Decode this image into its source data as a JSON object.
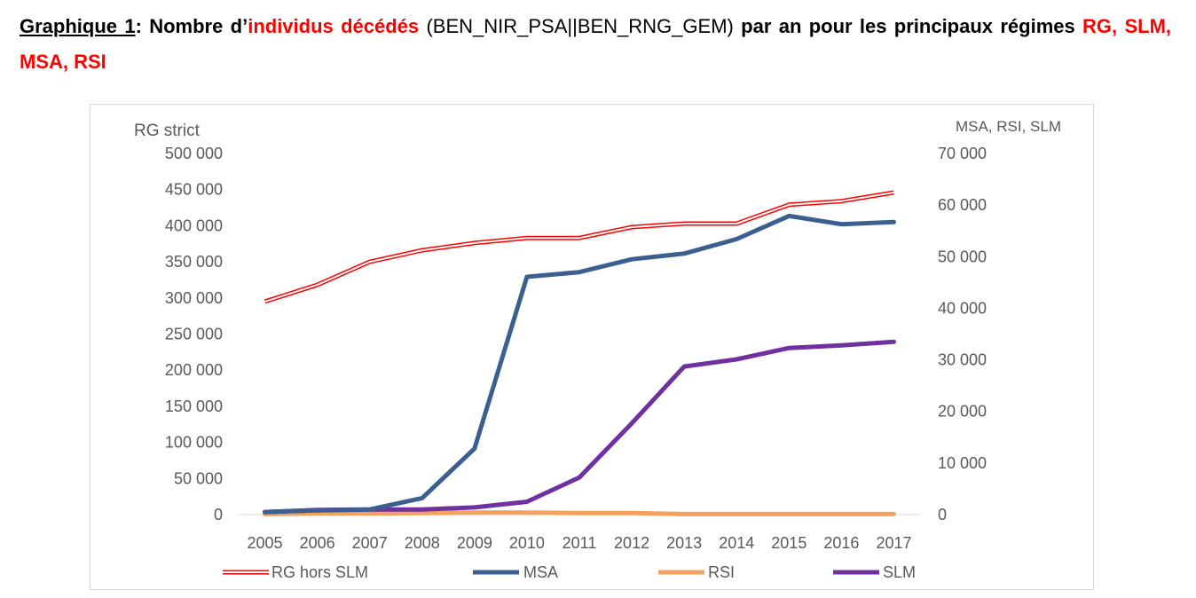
{
  "caption": {
    "label": "Graphique 1",
    "colon": ":",
    "part1": " Nombre d’",
    "highlight1": "individus décédés",
    "part2": " (BEN_NIR_PSA||BEN_RNG_GEM)",
    "part3": " par an pour les principaux régimes ",
    "highlight2": "RG, SLM, MSA, RSI"
  },
  "colors": {
    "rg": "#ff0000",
    "msa": "#3b5f8f",
    "rsi": "#f4a15d",
    "slm": "#7030a0",
    "tick": "#595959",
    "axis": "#d9d9d9",
    "caption_red": "#ff0000"
  },
  "chart_data": {
    "type": "line",
    "x": [
      "2005",
      "2006",
      "2007",
      "2008",
      "2009",
      "2010",
      "2011",
      "2012",
      "2013",
      "2014",
      "2015",
      "2016",
      "2017"
    ],
    "left_axis": {
      "title": "RG strict",
      "ylim": [
        0,
        500000
      ],
      "ticks": [
        "0",
        "50 000",
        "100 000",
        "150 000",
        "200 000",
        "250 000",
        "300 000",
        "350 000",
        "400 000",
        "450 000",
        "500 000"
      ]
    },
    "right_axis": {
      "title": "MSA, RSI, SLM",
      "ylim": [
        0,
        70000
      ],
      "ticks": [
        "0",
        "10 000",
        "20 000",
        "30 000",
        "40 000",
        "50 000",
        "60 000",
        "70 000"
      ]
    },
    "grid": false,
    "legend_position": "bottom",
    "series": [
      {
        "name": "RG hors SLM",
        "axis": "left",
        "style": "double",
        "values": [
          295000,
          318000,
          350000,
          366000,
          376000,
          383000,
          383000,
          398000,
          403000,
          403000,
          429000,
          434000,
          446000
        ]
      },
      {
        "name": "MSA",
        "axis": "right",
        "values": [
          500,
          800,
          1000,
          3200,
          12800,
          46100,
          47000,
          49500,
          50600,
          53400,
          57900,
          56300,
          56700
        ]
      },
      {
        "name": "RSI",
        "axis": "right",
        "values": [
          100,
          200,
          200,
          300,
          400,
          400,
          300,
          300,
          100,
          100,
          100,
          100,
          100
        ]
      },
      {
        "name": "SLM",
        "axis": "right",
        "values": [
          500,
          900,
          1000,
          1000,
          1400,
          2500,
          7200,
          17700,
          28700,
          30100,
          32300,
          32800,
          33500
        ]
      }
    ]
  }
}
